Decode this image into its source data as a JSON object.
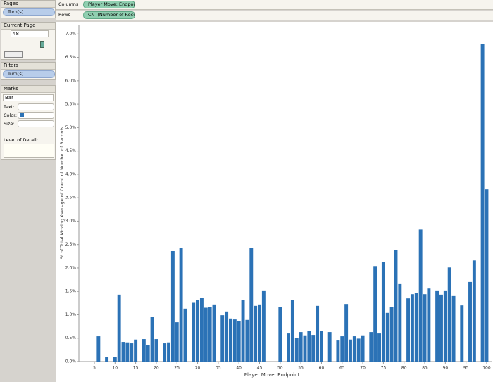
{
  "shelves": {
    "columns": "Columns",
    "columns_pill": "Player Move: Endpoi...",
    "rows": "Rows",
    "rows_pill": "CNT(Number of Reco..."
  },
  "pages": {
    "title": "Pages",
    "pill": "Turn(s)"
  },
  "current_page": {
    "title": "Current Page",
    "value": "48"
  },
  "filters": {
    "title": "Filters",
    "pill": "Turn(s)"
  },
  "marks": {
    "title": "Marks",
    "type": "Bar",
    "text": "Text:",
    "color": "Color:",
    "size": "Size:",
    "detail": "Level of Detail:"
  },
  "chart_data": {
    "type": "bar",
    "x_label": "Player Move: Endpoint",
    "y_label": "% of Total Moving Average of Count of Number of Records",
    "color": "#2b72b6",
    "x": [
      6,
      8,
      10,
      11,
      12,
      13,
      14,
      15,
      17,
      18,
      19,
      20,
      22,
      23,
      24,
      25,
      26,
      27,
      29,
      30,
      31,
      32,
      33,
      34,
      36,
      37,
      38,
      39,
      40,
      41,
      42,
      43,
      44,
      45,
      46,
      50,
      52,
      53,
      54,
      55,
      56,
      57,
      58,
      59,
      60,
      62,
      64,
      65,
      66,
      67,
      68,
      69,
      70,
      72,
      73,
      74,
      75,
      76,
      77,
      78,
      79,
      81,
      82,
      83,
      84,
      85,
      86,
      88,
      89,
      90,
      91,
      92,
      94,
      96,
      97,
      99,
      100
    ],
    "values": [
      0.54,
      0.09,
      0.09,
      1.43,
      0.42,
      0.41,
      0.39,
      0.47,
      0.48,
      0.35,
      0.95,
      0.48,
      0.39,
      0.41,
      2.36,
      0.84,
      2.42,
      1.13,
      1.27,
      1.31,
      1.36,
      1.15,
      1.16,
      1.22,
      0.99,
      1.07,
      0.92,
      0.9,
      0.87,
      1.31,
      0.89,
      2.42,
      1.19,
      1.22,
      1.52,
      1.17,
      0.6,
      1.31,
      0.51,
      0.63,
      0.56,
      0.66,
      0.57,
      1.19,
      0.65,
      0.63,
      0.45,
      0.54,
      1.23,
      0.47,
      0.54,
      0.49,
      0.56,
      0.63,
      2.04,
      0.6,
      2.12,
      1.04,
      1.16,
      2.39,
      1.67,
      1.35,
      1.44,
      1.47,
      2.82,
      1.44,
      1.56,
      1.52,
      1.43,
      1.52,
      2.01,
      1.4,
      1.2,
      1.7,
      2.16,
      6.79,
      3.68
    ],
    "xlim": [
      1.25,
      101.2
    ],
    "ylim": [
      0,
      7.2
    ],
    "xticks": [
      5,
      10,
      15,
      20,
      25,
      30,
      35,
      40,
      45,
      50,
      55,
      60,
      65,
      70,
      75,
      80,
      85,
      90,
      95,
      100
    ],
    "yticks": [
      {
        "value": 0,
        "label": "0.0%"
      },
      {
        "value": 0.5,
        "label": "0.5%"
      },
      {
        "value": 1,
        "label": "1.0%"
      },
      {
        "value": 1.5,
        "label": "1.5%"
      },
      {
        "value": 2,
        "label": "2.0%"
      },
      {
        "value": 2.5,
        "label": "2.5%"
      },
      {
        "value": 3,
        "label": "3.0%"
      },
      {
        "value": 3.5,
        "label": "3.5%"
      },
      {
        "value": 4,
        "label": "4.0%"
      },
      {
        "value": 4.5,
        "label": "4.5%"
      },
      {
        "value": 5,
        "label": "5.0%"
      },
      {
        "value": 5.5,
        "label": "5.5%"
      },
      {
        "value": 6,
        "label": "6.0%"
      },
      {
        "value": 6.5,
        "label": "6.5%"
      },
      {
        "value": 7,
        "label": "7.0%"
      }
    ]
  }
}
